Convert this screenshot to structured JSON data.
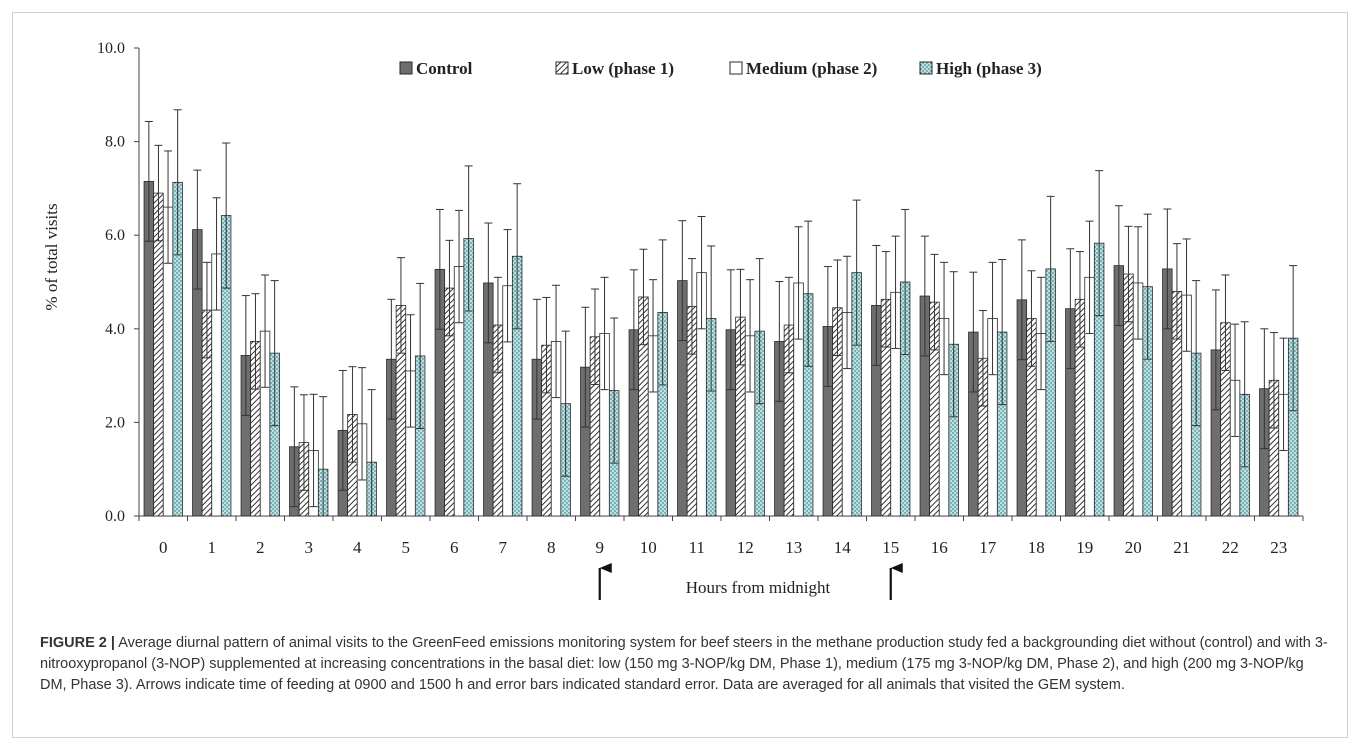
{
  "caption": {
    "label": "FIGURE 2 |",
    "text": "Average diurnal pattern of animal visits to the GreenFeed emissions monitoring system for beef steers in the methane production study fed a backgrounding diet without (control) and with 3-nitrooxypropanol (3-NOP) supplemented at increasing concentrations in the basal diet: low (150 mg 3-NOP/kg DM, Phase 1), medium (175 mg 3-NOP/kg DM, Phase 2), and high (200 mg 3-NOP/kg DM, Phase 3). Arrows indicate time of feeding at 0900 and 1500 h and error bars indicated standard error. Data are averaged for all animals that visited the GEM system."
  },
  "chart_data": {
    "type": "bar",
    "xlabel": "Hours from midnight",
    "ylabel": "% of total visits",
    "ylim": [
      0,
      10
    ],
    "yticks": [
      "0.0",
      "2.0",
      "4.0",
      "6.0",
      "8.0",
      "10.0"
    ],
    "categories": [
      "0",
      "1",
      "2",
      "3",
      "4",
      "5",
      "6",
      "7",
      "8",
      "9",
      "10",
      "11",
      "12",
      "13",
      "14",
      "15",
      "16",
      "17",
      "18",
      "19",
      "20",
      "21",
      "22",
      "23"
    ],
    "legend_position": "top",
    "annotations": [
      {
        "type": "arrow",
        "at_category": "9",
        "meaning": "feeding time"
      },
      {
        "type": "arrow",
        "at_category": "15",
        "meaning": "feeding time"
      }
    ],
    "series": [
      {
        "name": "Control",
        "pattern": "solid",
        "color": "#6e6e6e",
        "values": [
          7.15,
          6.12,
          3.43,
          1.48,
          1.83,
          3.35,
          5.27,
          4.98,
          3.35,
          3.18,
          3.98,
          5.03,
          3.98,
          3.73,
          4.05,
          4.5,
          4.7,
          3.93,
          4.62,
          4.43,
          5.35,
          5.28,
          3.55,
          2.72
        ],
        "errors": [
          1.28,
          1.27,
          1.28,
          1.28,
          1.28,
          1.28,
          1.28,
          1.28,
          1.28,
          1.28,
          1.28,
          1.28,
          1.28,
          1.28,
          1.28,
          1.28,
          1.28,
          1.28,
          1.28,
          1.28,
          1.28,
          1.28,
          1.28,
          1.28
        ]
      },
      {
        "name": "Low (phase 1)",
        "pattern": "hatch",
        "color": "#555555",
        "values": [
          6.9,
          4.4,
          3.73,
          1.57,
          2.17,
          4.5,
          4.87,
          4.08,
          3.65,
          3.83,
          4.68,
          4.48,
          4.25,
          4.08,
          4.45,
          4.63,
          4.57,
          3.37,
          4.22,
          4.63,
          5.17,
          4.8,
          4.13,
          2.9
        ],
        "errors": [
          1.02,
          1.02,
          1.02,
          1.02,
          1.02,
          1.02,
          1.02,
          1.02,
          1.02,
          1.02,
          1.02,
          1.02,
          1.02,
          1.02,
          1.02,
          1.02,
          1.02,
          1.02,
          1.02,
          1.02,
          1.02,
          1.02,
          1.02,
          1.02
        ]
      },
      {
        "name": "Medium (phase 2)",
        "pattern": "open",
        "color": "#ffffff",
        "values": [
          6.6,
          5.6,
          3.95,
          1.4,
          1.97,
          3.1,
          5.33,
          4.92,
          3.73,
          3.9,
          3.85,
          5.2,
          3.85,
          4.98,
          4.35,
          4.78,
          4.22,
          4.22,
          3.9,
          5.1,
          4.98,
          4.72,
          2.9,
          2.6
        ],
        "errors": [
          1.2,
          1.2,
          1.2,
          1.2,
          1.2,
          1.2,
          1.2,
          1.2,
          1.2,
          1.2,
          1.2,
          1.2,
          1.2,
          1.2,
          1.2,
          1.2,
          1.2,
          1.2,
          1.2,
          1.2,
          1.2,
          1.2,
          1.2,
          1.2
        ]
      },
      {
        "name": "High (phase 3)",
        "pattern": "dotted",
        "color": "#b7e3e6",
        "values": [
          7.13,
          6.42,
          3.48,
          1.0,
          1.15,
          3.42,
          5.93,
          5.55,
          2.4,
          2.68,
          4.35,
          4.22,
          3.95,
          4.75,
          5.2,
          5.0,
          3.67,
          3.93,
          5.28,
          5.83,
          4.9,
          3.48,
          2.6,
          3.8
        ],
        "errors": [
          1.55,
          1.55,
          1.55,
          1.55,
          1.55,
          1.55,
          1.55,
          1.55,
          1.55,
          1.55,
          1.55,
          1.55,
          1.55,
          1.55,
          1.55,
          1.55,
          1.55,
          1.55,
          1.55,
          1.55,
          1.55,
          1.55,
          1.55,
          1.55
        ]
      }
    ]
  }
}
